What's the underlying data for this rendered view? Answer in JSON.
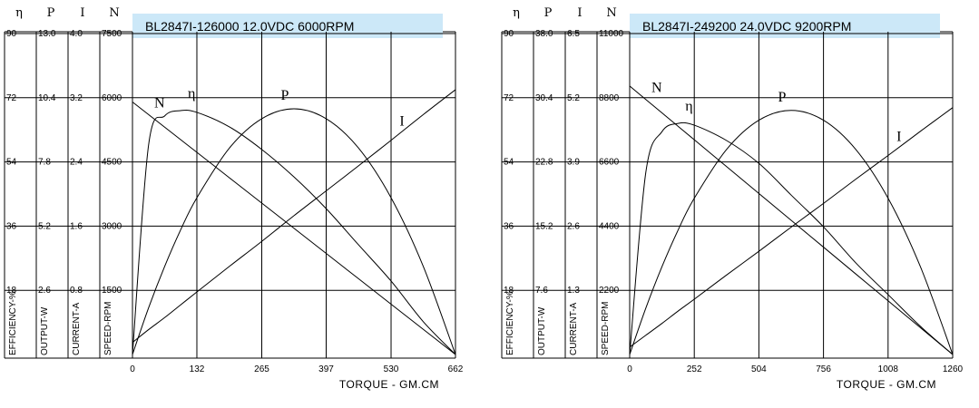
{
  "chart_data": [
    {
      "type": "line",
      "title": "BL2847I-126000   12.0VDC   6000RPM",
      "x_label": "TORQUE - GM.CM",
      "xlim": [
        0,
        662
      ],
      "xticks": [
        0,
        132,
        265,
        397,
        530,
        662
      ],
      "axes": [
        {
          "symbol": "η",
          "label": "EFFICIENCY-%",
          "ylim": [
            0,
            90
          ],
          "yticks": [
            18,
            36,
            54,
            72,
            90
          ]
        },
        {
          "symbol": "P",
          "label": "OUTPUT-W",
          "ylim": [
            0,
            13
          ],
          "yticks": [
            2.6,
            5.2,
            7.8,
            10.4,
            {
              "value": 13,
              "label": "13.0"
            }
          ]
        },
        {
          "symbol": "I",
          "label": "CURRENT-A",
          "ylim": [
            0,
            4
          ],
          "yticks": [
            0.8,
            1.6,
            2.4,
            3.2,
            {
              "value": 4,
              "label": "4.0"
            }
          ]
        },
        {
          "symbol": "N",
          "label": "SPEED-RPM",
          "ylim": [
            0,
            7500
          ],
          "yticks": [
            1500,
            3000,
            4500,
            6000,
            7500
          ]
        }
      ],
      "x": [
        0,
        33,
        66,
        99,
        132,
        199,
        265,
        331,
        397,
        463,
        530,
        596,
        662
      ],
      "series": [
        {
          "name": "N",
          "axis": 3,
          "color": "#000000",
          "values": [
            5900,
            5606,
            5312,
            5018,
            4724,
            4126,
            3538,
            2950,
            2362,
            1774,
            1176,
            588,
            0
          ]
        },
        {
          "name": "η",
          "axis": 0,
          "color": "#000000",
          "values": [
            0,
            58.7,
            66.9,
            68.4,
            67.9,
            63.8,
            57.5,
            49.8,
            40.9,
            30.8,
            20.6,
            9.2,
            0
          ]
        },
        {
          "name": "P",
          "axis": 1,
          "color": "#000000",
          "values": [
            0,
            1.89,
            3.57,
            5.06,
            6.35,
            8.37,
            9.55,
            9.95,
            9.55,
            8.37,
            6.35,
            3.57,
            0
          ]
        },
        {
          "name": "I",
          "axis": 2,
          "color": "#000000",
          "values": [
            0.15,
            0.31,
            0.46,
            0.62,
            0.78,
            1.1,
            1.41,
            1.73,
            2.04,
            2.35,
            2.67,
            2.99,
            3.3
          ]
        }
      ]
    },
    {
      "type": "line",
      "title": "BL2847I-249200    24.0VDC   9200RPM",
      "x_label": "TORQUE - GM.CM",
      "xlim": [
        0,
        1260
      ],
      "xticks": [
        0,
        252,
        504,
        756,
        1008,
        1260
      ],
      "axes": [
        {
          "symbol": "η",
          "label": "EFFICIENCY-%",
          "ylim": [
            0,
            90
          ],
          "yticks": [
            18,
            36,
            54,
            72,
            90
          ]
        },
        {
          "symbol": "P",
          "label": "OUTPUT-W",
          "ylim": [
            0,
            38
          ],
          "yticks": [
            7.6,
            15.2,
            22.8,
            30.4,
            {
              "value": 38,
              "label": "38.0"
            }
          ]
        },
        {
          "symbol": "I",
          "label": "CURRENT-A",
          "ylim": [
            0,
            6.5
          ],
          "yticks": [
            1.3,
            2.6,
            3.9,
            5.2,
            6.5
          ]
        },
        {
          "symbol": "N",
          "label": "SPEED-RPM",
          "ylim": [
            0,
            11000
          ],
          "yticks": [
            2200,
            4400,
            6600,
            8800,
            11000
          ]
        }
      ],
      "x": [
        0,
        63,
        126,
        189,
        252,
        378,
        504,
        630,
        756,
        882,
        1008,
        1134,
        1260
      ],
      "series": [
        {
          "name": "N",
          "axis": 3,
          "color": "#000000",
          "values": [
            9200,
            8740,
            8280,
            7820,
            7360,
            6440,
            5520,
            4600,
            3680,
            2760,
            1840,
            920,
            0
          ]
        },
        {
          "name": "η",
          "axis": 0,
          "color": "#000000",
          "values": [
            0,
            51.1,
            62.5,
            64.8,
            64.3,
            60,
            53.6,
            44.7,
            35.8,
            25.7,
            16.8,
            7.9,
            0
          ]
        },
        {
          "name": "P",
          "axis": 1,
          "color": "#000000",
          "values": [
            0,
            5.49,
            10.4,
            14.74,
            18.5,
            24.28,
            27.74,
            28.9,
            27.74,
            24.28,
            18.5,
            10.4,
            0
          ]
        },
        {
          "name": "I",
          "axis": 2,
          "color": "#000000",
          "values": [
            0.15,
            0.39,
            0.63,
            0.88,
            1.12,
            1.61,
            2.09,
            2.58,
            3.06,
            3.55,
            4.03,
            4.52,
            5
          ]
        }
      ]
    }
  ]
}
